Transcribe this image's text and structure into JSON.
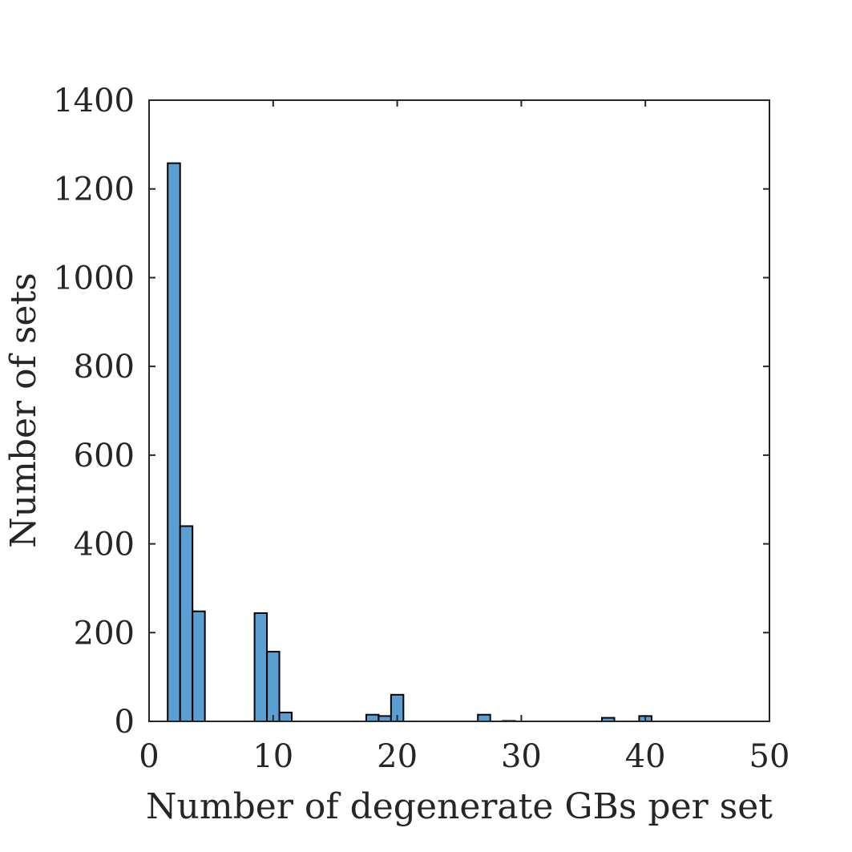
{
  "chart_data": {
    "type": "bar",
    "title": "",
    "xlabel": "Number of degenerate GBs per set",
    "ylabel": "Number of sets",
    "xlim": [
      0,
      50
    ],
    "ylim": [
      0,
      1400
    ],
    "xticks": [
      0,
      10,
      20,
      30,
      40,
      50
    ],
    "xtick_labels": [
      "0",
      "10",
      "20",
      "30",
      "40",
      "50"
    ],
    "yticks": [
      0,
      200,
      400,
      600,
      800,
      1000,
      1200,
      1400
    ],
    "ytick_labels": [
      "0",
      "200",
      "400",
      "600",
      "800",
      "1000",
      "1200",
      "1400"
    ],
    "grid": false,
    "bar_color": "#5b9fd2",
    "bin_width": 1,
    "bins": [
      {
        "x": 2,
        "count": 1258
      },
      {
        "x": 3,
        "count": 440
      },
      {
        "x": 4,
        "count": 248
      },
      {
        "x": 5,
        "count": 0
      },
      {
        "x": 6,
        "count": 0
      },
      {
        "x": 7,
        "count": 0
      },
      {
        "x": 8,
        "count": 0
      },
      {
        "x": 9,
        "count": 244
      },
      {
        "x": 10,
        "count": 157
      },
      {
        "x": 11,
        "count": 20
      },
      {
        "x": 12,
        "count": 0
      },
      {
        "x": 13,
        "count": 0
      },
      {
        "x": 14,
        "count": 0
      },
      {
        "x": 15,
        "count": 0
      },
      {
        "x": 16,
        "count": 0
      },
      {
        "x": 17,
        "count": 0
      },
      {
        "x": 18,
        "count": 15
      },
      {
        "x": 19,
        "count": 12
      },
      {
        "x": 20,
        "count": 60
      },
      {
        "x": 21,
        "count": 0
      },
      {
        "x": 22,
        "count": 0
      },
      {
        "x": 23,
        "count": 0
      },
      {
        "x": 24,
        "count": 0
      },
      {
        "x": 25,
        "count": 0
      },
      {
        "x": 26,
        "count": 0
      },
      {
        "x": 27,
        "count": 15
      },
      {
        "x": 28,
        "count": 0
      },
      {
        "x": 29,
        "count": 1
      },
      {
        "x": 30,
        "count": 0
      },
      {
        "x": 31,
        "count": 0
      },
      {
        "x": 32,
        "count": 0
      },
      {
        "x": 33,
        "count": 0
      },
      {
        "x": 34,
        "count": 0
      },
      {
        "x": 35,
        "count": 0
      },
      {
        "x": 36,
        "count": 0
      },
      {
        "x": 37,
        "count": 8
      },
      {
        "x": 38,
        "count": 0
      },
      {
        "x": 39,
        "count": 0
      },
      {
        "x": 40,
        "count": 12
      }
    ]
  }
}
